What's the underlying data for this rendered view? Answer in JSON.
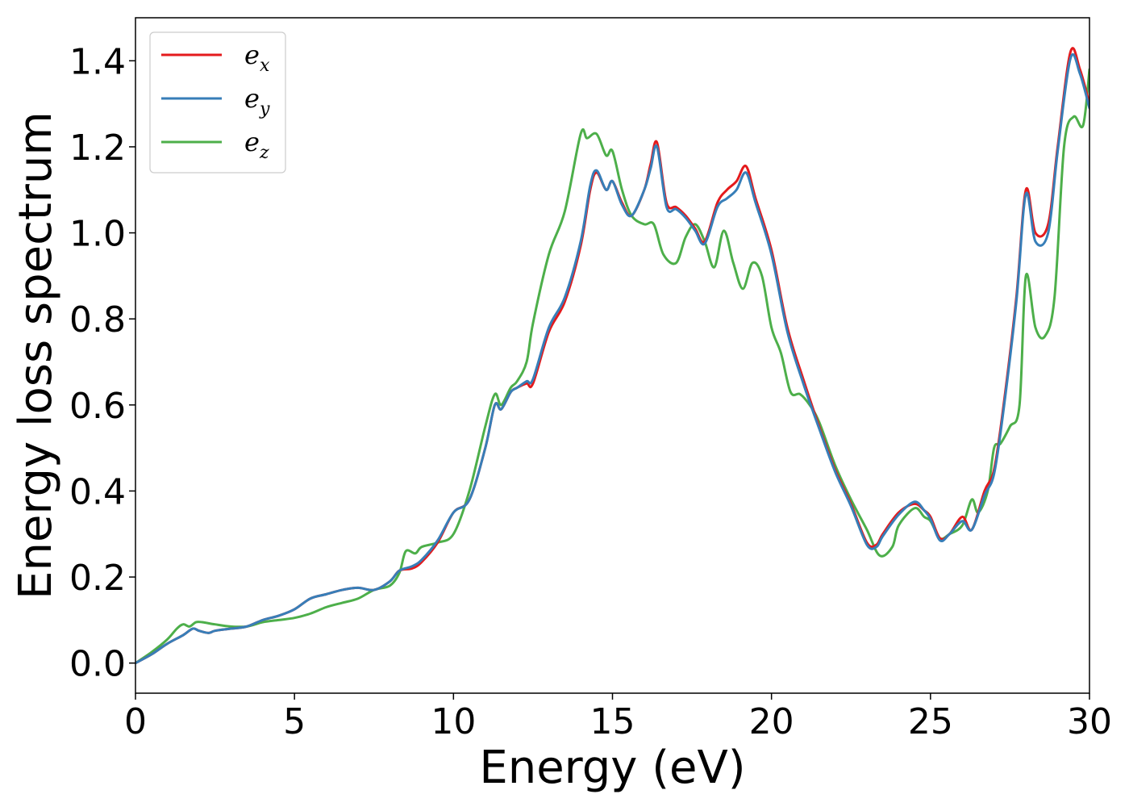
{
  "chart_data": {
    "type": "line",
    "title": "",
    "xlabel": "Energy (eV)",
    "ylabel": "Energy loss spectrum",
    "xlim": [
      0,
      30
    ],
    "ylim": [
      -0.07,
      1.5
    ],
    "x_ticks": [
      0,
      5,
      10,
      15,
      20,
      25,
      30
    ],
    "x_tick_labels": [
      "0",
      "5",
      "10",
      "15",
      "20",
      "25",
      "30"
    ],
    "y_ticks": [
      0.0,
      0.2,
      0.4,
      0.6,
      0.8,
      1.0,
      1.2,
      1.4
    ],
    "y_tick_labels": [
      "0.0",
      "0.2",
      "0.4",
      "0.6",
      "0.8",
      "1.0",
      "1.2",
      "1.4"
    ],
    "grid": false,
    "legend_position": "top-left",
    "series": [
      {
        "name": "e_x",
        "label_main": "e",
        "label_sub": "x",
        "color": "#e41a1c",
        "x": [
          0,
          0.5,
          1,
          1.5,
          1.8,
          2,
          2.3,
          2.5,
          3,
          3.5,
          4,
          4.5,
          5,
          5.5,
          6,
          6.5,
          7,
          7.5,
          8,
          8.3,
          8.7,
          9,
          9.5,
          10,
          10.5,
          11,
          11.3,
          11.5,
          11.8,
          12,
          12.3,
          12.5,
          13,
          13.5,
          14,
          14.3,
          14.5,
          14.8,
          15,
          15.3,
          15.6,
          16,
          16.2,
          16.4,
          16.7,
          17,
          17.3,
          17.6,
          17.9,
          18.3,
          18.6,
          18.9,
          19.2,
          19.5,
          20,
          20.5,
          21,
          21.5,
          22,
          22.5,
          23,
          23.3,
          23.5,
          24,
          24.5,
          24.8,
          25,
          25.3,
          25.6,
          26,
          26.3,
          26.7,
          27,
          27.3,
          27.7,
          28,
          28.3,
          28.7,
          29,
          29.4,
          29.7,
          30
        ],
        "y": [
          0,
          0.02,
          0.045,
          0.065,
          0.08,
          0.075,
          0.07,
          0.075,
          0.08,
          0.085,
          0.1,
          0.11,
          0.125,
          0.15,
          0.16,
          0.17,
          0.175,
          0.17,
          0.19,
          0.215,
          0.22,
          0.235,
          0.28,
          0.35,
          0.38,
          0.5,
          0.6,
          0.59,
          0.63,
          0.64,
          0.65,
          0.65,
          0.77,
          0.84,
          0.97,
          1.1,
          1.14,
          1.1,
          1.12,
          1.07,
          1.04,
          1.1,
          1.16,
          1.21,
          1.07,
          1.06,
          1.04,
          1.01,
          0.98,
          1.07,
          1.1,
          1.12,
          1.155,
          1.08,
          0.96,
          0.78,
          0.66,
          0.55,
          0.45,
          0.37,
          0.28,
          0.275,
          0.3,
          0.35,
          0.37,
          0.355,
          0.34,
          0.29,
          0.3,
          0.34,
          0.31,
          0.4,
          0.45,
          0.6,
          0.85,
          1.1,
          1.0,
          1.02,
          1.2,
          1.42,
          1.38,
          1.3
        ]
      },
      {
        "name": "e_y",
        "label_main": "e",
        "label_sub": "y",
        "color": "#377eb8",
        "x": [
          0,
          0.5,
          1,
          1.5,
          1.8,
          2,
          2.3,
          2.5,
          3,
          3.5,
          4,
          4.5,
          5,
          5.5,
          6,
          6.5,
          7,
          7.5,
          8,
          8.3,
          8.7,
          9,
          9.5,
          10,
          10.5,
          11,
          11.3,
          11.5,
          11.8,
          12,
          12.3,
          12.5,
          13,
          13.5,
          14,
          14.3,
          14.5,
          14.8,
          15,
          15.3,
          15.6,
          16,
          16.2,
          16.4,
          16.7,
          17,
          17.3,
          17.6,
          17.9,
          18.3,
          18.6,
          18.9,
          19.2,
          19.5,
          20,
          20.5,
          21,
          21.5,
          22,
          22.5,
          23,
          23.3,
          23.5,
          24,
          24.5,
          24.8,
          25,
          25.3,
          25.6,
          26,
          26.3,
          26.7,
          27,
          27.3,
          27.7,
          28,
          28.3,
          28.7,
          29,
          29.4,
          29.7,
          30
        ],
        "y": [
          0,
          0.02,
          0.045,
          0.065,
          0.08,
          0.075,
          0.07,
          0.075,
          0.08,
          0.085,
          0.1,
          0.11,
          0.125,
          0.15,
          0.16,
          0.17,
          0.175,
          0.17,
          0.19,
          0.215,
          0.225,
          0.24,
          0.285,
          0.35,
          0.38,
          0.5,
          0.6,
          0.59,
          0.63,
          0.64,
          0.655,
          0.66,
          0.78,
          0.85,
          0.98,
          1.11,
          1.145,
          1.1,
          1.12,
          1.065,
          1.04,
          1.1,
          1.15,
          1.2,
          1.06,
          1.055,
          1.035,
          1.005,
          0.975,
          1.06,
          1.08,
          1.1,
          1.14,
          1.07,
          0.95,
          0.77,
          0.65,
          0.545,
          0.445,
          0.365,
          0.275,
          0.27,
          0.295,
          0.345,
          0.375,
          0.355,
          0.335,
          0.285,
          0.3,
          0.33,
          0.31,
          0.39,
          0.44,
          0.59,
          0.84,
          1.09,
          0.98,
          1.0,
          1.19,
          1.405,
          1.37,
          1.29
        ]
      },
      {
        "name": "e_z",
        "label_main": "e",
        "label_sub": "z",
        "color": "#4daf4a",
        "x": [
          0,
          0.5,
          1,
          1.3,
          1.5,
          1.7,
          1.9,
          2.1,
          2.5,
          3,
          3.5,
          4,
          4.5,
          5,
          5.5,
          6,
          6.5,
          7,
          7.5,
          8,
          8.3,
          8.5,
          8.8,
          9,
          9.5,
          10,
          10.5,
          11,
          11.3,
          11.5,
          11.8,
          12,
          12.3,
          12.5,
          13,
          13.5,
          14,
          14.2,
          14.5,
          14.8,
          15,
          15.3,
          15.6,
          16,
          16.3,
          16.6,
          17,
          17.3,
          17.6,
          17.9,
          18.2,
          18.5,
          18.8,
          19.1,
          19.4,
          19.7,
          20,
          20.3,
          20.6,
          20.9,
          21.2,
          21.5,
          22,
          22.5,
          23,
          23.4,
          23.8,
          24,
          24.5,
          24.8,
          25,
          25.3,
          25.6,
          26,
          26.3,
          26.5,
          26.8,
          27,
          27.2,
          27.5,
          27.8,
          28,
          28.3,
          28.6,
          28.9,
          29.2,
          29.5,
          29.8,
          30
        ],
        "y": [
          0,
          0.025,
          0.055,
          0.08,
          0.09,
          0.085,
          0.095,
          0.095,
          0.09,
          0.085,
          0.085,
          0.095,
          0.1,
          0.105,
          0.115,
          0.13,
          0.14,
          0.15,
          0.17,
          0.18,
          0.21,
          0.26,
          0.255,
          0.27,
          0.28,
          0.3,
          0.4,
          0.55,
          0.625,
          0.6,
          0.64,
          0.655,
          0.7,
          0.79,
          0.95,
          1.05,
          1.23,
          1.22,
          1.23,
          1.18,
          1.19,
          1.1,
          1.04,
          1.02,
          1.02,
          0.95,
          0.93,
          0.99,
          1.02,
          0.98,
          0.92,
          1.005,
          0.93,
          0.87,
          0.93,
          0.9,
          0.78,
          0.72,
          0.63,
          0.625,
          0.6,
          0.56,
          0.46,
          0.38,
          0.31,
          0.25,
          0.27,
          0.32,
          0.36,
          0.34,
          0.33,
          0.29,
          0.3,
          0.32,
          0.38,
          0.35,
          0.4,
          0.5,
          0.51,
          0.55,
          0.6,
          0.9,
          0.78,
          0.76,
          0.85,
          1.2,
          1.27,
          1.25,
          1.38
        ]
      }
    ]
  }
}
